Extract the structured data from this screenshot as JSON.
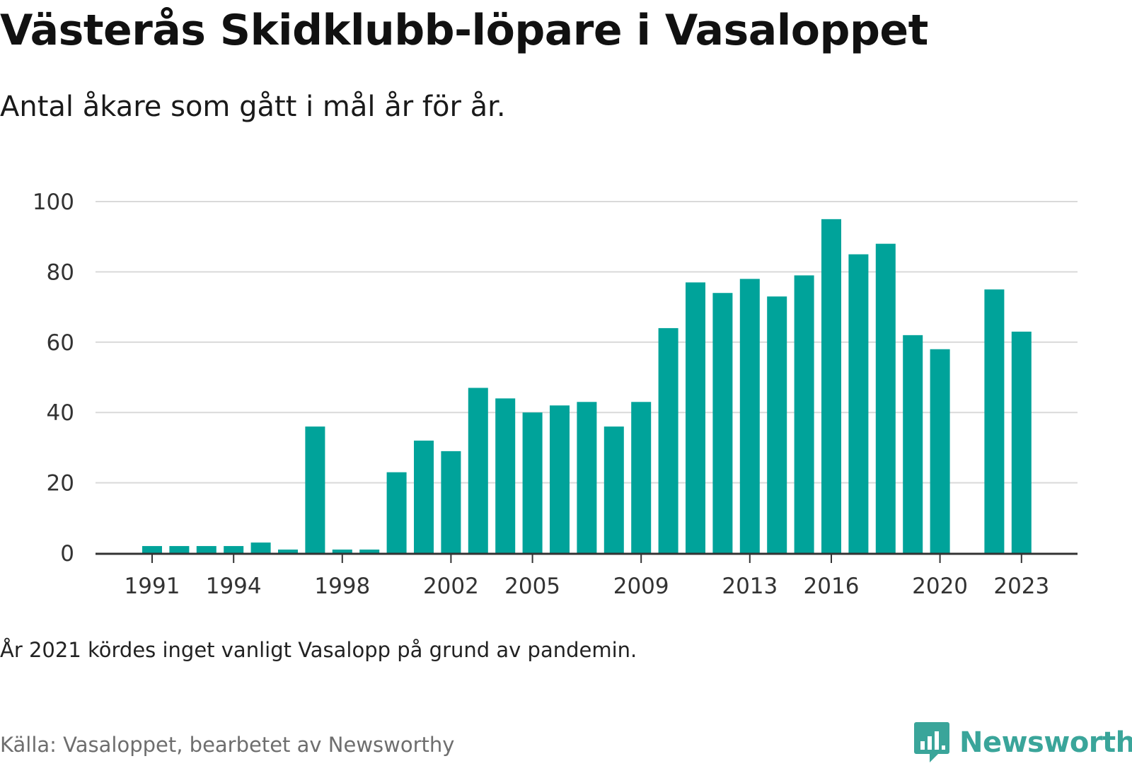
{
  "title": "Västerås Skidklubb-löpare i Vasaloppet",
  "subtitle": "Antal åkare som gått i mål år för år.",
  "note": "År 2021 kördes inget vanligt Vasalopp på grund av pandemin.",
  "source": "Källa: Vasaloppet, bearbetet av Newsworthy",
  "logo": {
    "text": "Newsworthy",
    "icon": "bar-chart-speech-bubble-icon"
  },
  "colors": {
    "bar": "#00a39a",
    "grid": "#d9d9d9",
    "axis": "#333333",
    "logo": "#3aa59a"
  },
  "chart_data": {
    "type": "bar",
    "title": "",
    "xlabel": "",
    "ylabel": "",
    "categories": [
      1990,
      1991,
      1992,
      1993,
      1994,
      1995,
      1996,
      1997,
      1998,
      1999,
      2000,
      2001,
      2002,
      2003,
      2004,
      2005,
      2006,
      2007,
      2008,
      2009,
      2010,
      2011,
      2012,
      2013,
      2014,
      2015,
      2016,
      2017,
      2018,
      2019,
      2020,
      2021,
      2022,
      2023
    ],
    "values": [
      0,
      2,
      2,
      2,
      2,
      3,
      1,
      36,
      1,
      1,
      23,
      32,
      29,
      47,
      44,
      40,
      42,
      43,
      36,
      43,
      64,
      77,
      74,
      78,
      73,
      79,
      95,
      85,
      88,
      62,
      58,
      0,
      75,
      63
    ],
    "x_tick_labels": [
      "1991",
      "1994",
      "1998",
      "2002",
      "2005",
      "2009",
      "2013",
      "2016",
      "2020",
      "2023"
    ],
    "y_ticks": [
      0,
      20,
      40,
      60,
      80,
      100
    ],
    "ylim": [
      0,
      100
    ],
    "grid": true,
    "legend": "none"
  }
}
